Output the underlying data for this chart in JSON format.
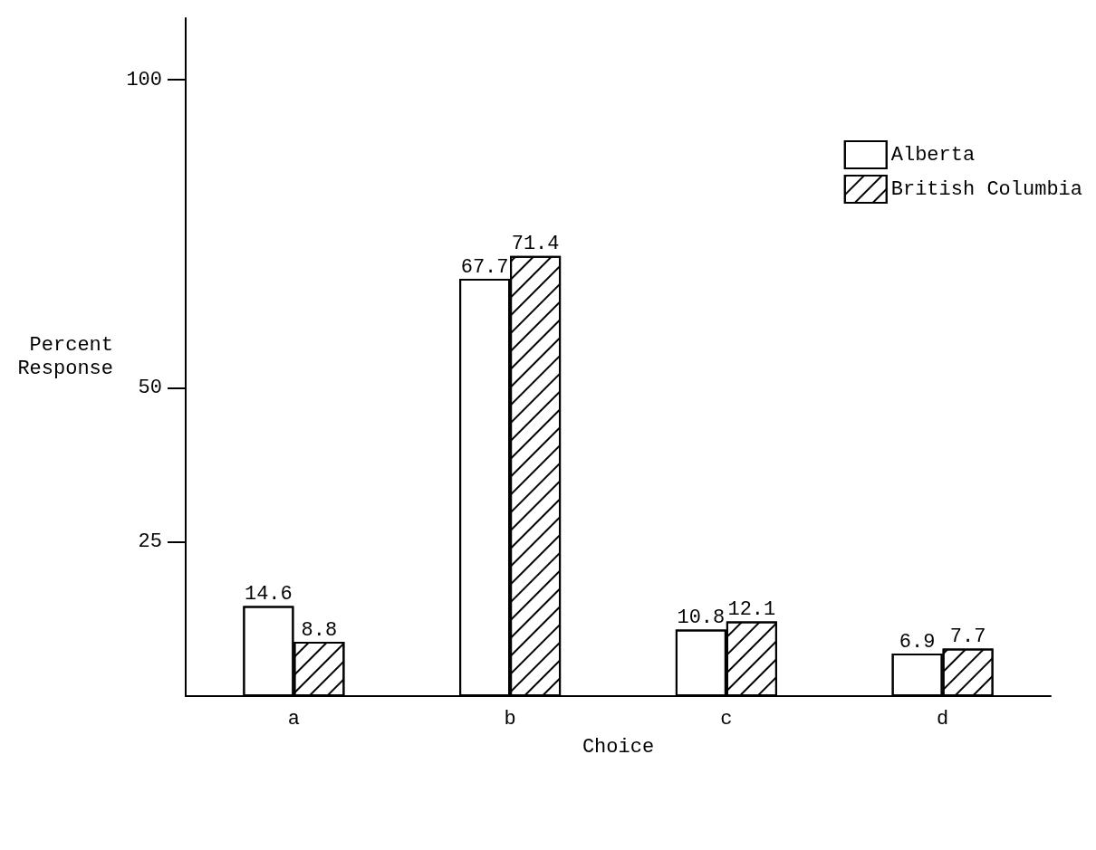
{
  "chart_data": {
    "type": "bar",
    "xlabel": "Choice",
    "ylabel": "Percent Response",
    "categories": [
      "a",
      "b",
      "c",
      "d"
    ],
    "series": [
      {
        "name": "Alberta",
        "color": "#ffffff",
        "values": [
          14.6,
          67.7,
          10.8,
          6.9
        ]
      },
      {
        "name": "British Columbia",
        "color": "#ffffff",
        "values": [
          8.8,
          71.4,
          12.1,
          7.7
        ]
      }
    ],
    "ylim": [
      0,
      110
    ],
    "yticks": [
      25,
      50,
      100
    ],
    "data_labels": true,
    "legend": "top right",
    "grid": false
  }
}
